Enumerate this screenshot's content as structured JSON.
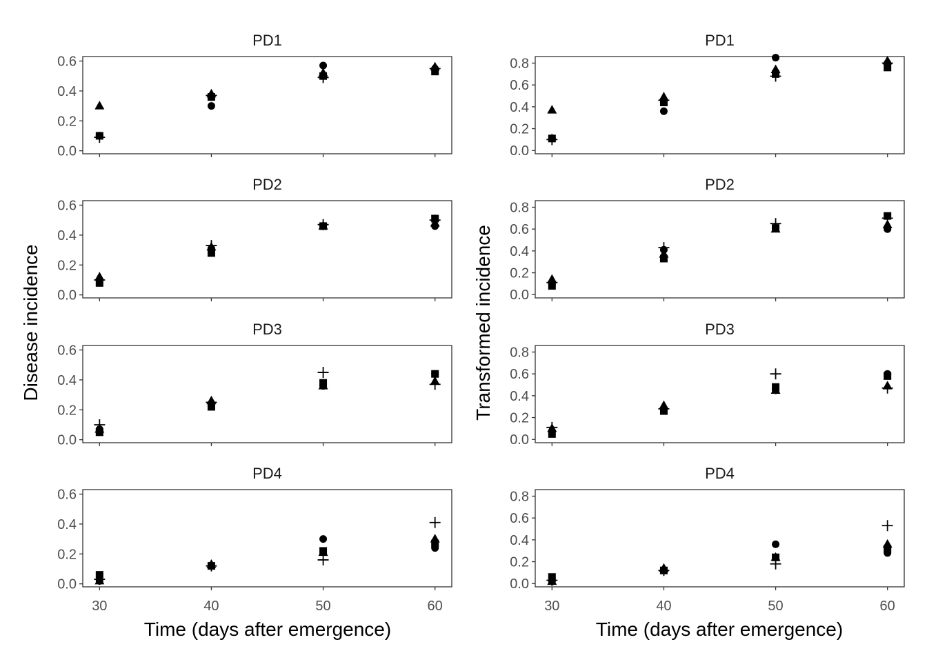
{
  "chart_data": {
    "type": "scatter",
    "x_ticks": [
      30,
      40,
      50,
      60
    ],
    "x_label": "Time (days after emergence)",
    "marker_color": "#000000",
    "markers": [
      "circle",
      "triangle",
      "square",
      "plus"
    ],
    "columns": [
      {
        "ylabel": "Disease incidence",
        "ylim": [
          -0.02,
          0.63
        ],
        "yticks": [
          "0.0",
          "0.2",
          "0.4",
          "0.6"
        ],
        "panels": [
          {
            "title": "PD1",
            "series": [
              {
                "marker": "circle",
                "x": [
                  30,
                  40,
                  50,
                  60
                ],
                "y": [
                  0.1,
                  0.3,
                  0.57,
                  0.55
                ]
              },
              {
                "marker": "triangle",
                "x": [
                  30,
                  40,
                  50,
                  60
                ],
                "y": [
                  0.3,
                  0.38,
                  0.52,
                  0.56
                ]
              },
              {
                "marker": "square",
                "x": [
                  30,
                  40,
                  50,
                  60
                ],
                "y": [
                  0.1,
                  0.36,
                  0.5,
                  0.53
                ]
              },
              {
                "marker": "plus",
                "x": [
                  30,
                  40,
                  50,
                  60
                ],
                "y": [
                  0.09,
                  0.37,
                  0.49,
                  0.55
                ]
              }
            ]
          },
          {
            "title": "PD2",
            "series": [
              {
                "marker": "circle",
                "x": [
                  30,
                  40,
                  50,
                  60
                ],
                "y": [
                  0.09,
                  0.31,
                  0.46,
                  0.46
                ]
              },
              {
                "marker": "triangle",
                "x": [
                  30,
                  40,
                  50,
                  60
                ],
                "y": [
                  0.12,
                  0.32,
                  0.46,
                  0.48
                ]
              },
              {
                "marker": "square",
                "x": [
                  30,
                  40,
                  50,
                  60
                ],
                "y": [
                  0.08,
                  0.28,
                  0.46,
                  0.51
                ]
              },
              {
                "marker": "plus",
                "x": [
                  30,
                  40,
                  50,
                  60
                ],
                "y": [
                  0.1,
                  0.33,
                  0.47,
                  0.5
                ]
              }
            ]
          },
          {
            "title": "PD3",
            "series": [
              {
                "marker": "circle",
                "x": [
                  30,
                  40,
                  50,
                  60
                ],
                "y": [
                  0.07,
                  0.24,
                  0.36,
                  0.44
                ]
              },
              {
                "marker": "triangle",
                "x": [
                  30,
                  40,
                  50,
                  60
                ],
                "y": [
                  0.07,
                  0.26,
                  0.36,
                  0.39
                ]
              },
              {
                "marker": "square",
                "x": [
                  30,
                  40,
                  50,
                  60
                ],
                "y": [
                  0.05,
                  0.22,
                  0.38,
                  0.44
                ]
              },
              {
                "marker": "plus",
                "x": [
                  30,
                  40,
                  50,
                  60
                ],
                "y": [
                  0.1,
                  0.25,
                  0.45,
                  0.37
                ]
              }
            ]
          },
          {
            "title": "PD4",
            "series": [
              {
                "marker": "circle",
                "x": [
                  30,
                  40,
                  50,
                  60
                ],
                "y": [
                  0.02,
                  0.12,
                  0.3,
                  0.24
                ]
              },
              {
                "marker": "triangle",
                "x": [
                  30,
                  40,
                  50,
                  60
                ],
                "y": [
                  0.02,
                  0.13,
                  0.21,
                  0.3
                ]
              },
              {
                "marker": "square",
                "x": [
                  30,
                  40,
                  50,
                  60
                ],
                "y": [
                  0.06,
                  0.12,
                  0.22,
                  0.27
                ]
              },
              {
                "marker": "plus",
                "x": [
                  30,
                  40,
                  50,
                  60
                ],
                "y": [
                  0.03,
                  0.12,
                  0.16,
                  0.41
                ]
              }
            ]
          }
        ]
      },
      {
        "ylabel": "Transformed incidence",
        "ylim": [
          -0.03,
          0.86
        ],
        "yticks": [
          "0.0",
          "0.2",
          "0.4",
          "0.6",
          "0.8"
        ],
        "panels": [
          {
            "title": "PD1",
            "series": [
              {
                "marker": "circle",
                "x": [
                  30,
                  40,
                  50,
                  60
                ],
                "y": [
                  0.11,
                  0.36,
                  0.85,
                  0.8
                ]
              },
              {
                "marker": "triangle",
                "x": [
                  30,
                  40,
                  50,
                  60
                ],
                "y": [
                  0.37,
                  0.49,
                  0.74,
                  0.82
                ]
              },
              {
                "marker": "square",
                "x": [
                  30,
                  40,
                  50,
                  60
                ],
                "y": [
                  0.11,
                  0.44,
                  0.7,
                  0.76
                ]
              },
              {
                "marker": "plus",
                "x": [
                  30,
                  40,
                  50,
                  60
                ],
                "y": [
                  0.1,
                  0.46,
                  0.68,
                  0.8
                ]
              }
            ]
          },
          {
            "title": "PD2",
            "series": [
              {
                "marker": "circle",
                "x": [
                  30,
                  40,
                  50,
                  60
                ],
                "y": [
                  0.09,
                  0.41,
                  0.61,
                  0.6
                ]
              },
              {
                "marker": "triangle",
                "x": [
                  30,
                  40,
                  50,
                  60
                ],
                "y": [
                  0.14,
                  0.37,
                  0.6,
                  0.64
                ]
              },
              {
                "marker": "square",
                "x": [
                  30,
                  40,
                  50,
                  60
                ],
                "y": [
                  0.08,
                  0.33,
                  0.61,
                  0.72
                ]
              },
              {
                "marker": "plus",
                "x": [
                  30,
                  40,
                  50,
                  60
                ],
                "y": [
                  0.11,
                  0.43,
                  0.65,
                  0.7
                ]
              }
            ]
          },
          {
            "title": "PD3",
            "series": [
              {
                "marker": "circle",
                "x": [
                  30,
                  40,
                  50,
                  60
                ],
                "y": [
                  0.07,
                  0.28,
                  0.45,
                  0.6
                ]
              },
              {
                "marker": "triangle",
                "x": [
                  30,
                  40,
                  50,
                  60
                ],
                "y": [
                  0.1,
                  0.31,
                  0.45,
                  0.49
                ]
              },
              {
                "marker": "square",
                "x": [
                  30,
                  40,
                  50,
                  60
                ],
                "y": [
                  0.05,
                  0.26,
                  0.48,
                  0.58
                ]
              },
              {
                "marker": "plus",
                "x": [
                  30,
                  40,
                  50,
                  60
                ],
                "y": [
                  0.11,
                  0.28,
                  0.6,
                  0.47
                ]
              }
            ]
          },
          {
            "title": "PD4",
            "series": [
              {
                "marker": "circle",
                "x": [
                  30,
                  40,
                  50,
                  60
                ],
                "y": [
                  0.02,
                  0.12,
                  0.36,
                  0.28
                ]
              },
              {
                "marker": "triangle",
                "x": [
                  30,
                  40,
                  50,
                  60
                ],
                "y": [
                  0.02,
                  0.14,
                  0.24,
                  0.36
                ]
              },
              {
                "marker": "square",
                "x": [
                  30,
                  40,
                  50,
                  60
                ],
                "y": [
                  0.06,
                  0.12,
                  0.24,
                  0.32
                ]
              },
              {
                "marker": "plus",
                "x": [
                  30,
                  40,
                  50,
                  60
                ],
                "y": [
                  0.03,
                  0.12,
                  0.18,
                  0.53
                ]
              }
            ]
          }
        ]
      }
    ]
  }
}
